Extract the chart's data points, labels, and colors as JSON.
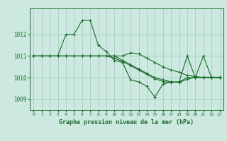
{
  "title": "Graphe pression niveau de la mer (hPa)",
  "bg_color": "#cce8e0",
  "grid_color": "#99ccbb",
  "line_color": "#1a6b2a",
  "xlim": [
    -0.5,
    23.5
  ],
  "ylim": [
    1008.5,
    1013.2
  ],
  "yticks": [
    1009,
    1010,
    1011,
    1012
  ],
  "xticks": [
    0,
    1,
    2,
    3,
    4,
    5,
    6,
    7,
    8,
    9,
    10,
    11,
    12,
    13,
    14,
    15,
    16,
    17,
    18,
    19,
    20,
    21,
    22,
    23
  ],
  "series1": {
    "x": [
      0,
      1,
      2,
      3,
      4,
      5,
      6,
      7,
      8,
      9,
      10,
      11,
      12,
      13,
      14,
      15,
      16,
      17,
      18,
      19,
      20,
      21,
      22,
      23
    ],
    "y": [
      1011,
      1011,
      1011,
      1011,
      1012,
      1012,
      1012.65,
      1012.65,
      1011.5,
      1011.2,
      1010.8,
      1010.7,
      1009.9,
      1009.8,
      1009.6,
      1009.1,
      1009.7,
      1009.8,
      1009.8,
      1011.0,
      1010.0,
      1011.0,
      1010.0,
      1010.0
    ]
  },
  "series2": {
    "x": [
      0,
      1,
      2,
      3,
      4,
      5,
      6,
      7,
      8,
      9,
      10,
      11,
      12,
      13,
      14,
      15,
      16,
      17,
      18,
      19,
      20,
      21,
      22,
      23
    ],
    "y": [
      1011,
      1011,
      1011,
      1011,
      1011,
      1011,
      1011,
      1011,
      1011,
      1011,
      1011,
      1011,
      1011.15,
      1011.1,
      1010.9,
      1010.7,
      1010.5,
      1010.35,
      1010.25,
      1010.1,
      1010.05,
      1010.0,
      1010.0,
      1010.0
    ]
  },
  "series3": {
    "x": [
      0,
      1,
      2,
      3,
      4,
      5,
      6,
      7,
      8,
      9,
      10,
      11,
      12,
      13,
      14,
      15,
      16,
      17,
      18,
      19,
      20,
      21,
      22,
      23
    ],
    "y": [
      1011,
      1011,
      1011,
      1011,
      1011,
      1011,
      1011,
      1011,
      1011,
      1011,
      1011,
      1010.8,
      1010.6,
      1010.4,
      1010.2,
      1010.0,
      1009.9,
      1009.8,
      1009.8,
      1010.0,
      1010.0,
      1010.0,
      1010.0,
      1010.0
    ]
  },
  "series4": {
    "x": [
      0,
      1,
      2,
      3,
      4,
      5,
      6,
      7,
      8,
      9,
      10,
      11,
      12,
      13,
      14,
      15,
      16,
      17,
      18,
      19,
      20,
      21,
      22,
      23
    ],
    "y": [
      1011,
      1011,
      1011,
      1011,
      1011,
      1011,
      1011,
      1011,
      1011,
      1011,
      1010.9,
      1010.75,
      1010.55,
      1010.35,
      1010.15,
      1009.95,
      1009.82,
      1009.78,
      1009.78,
      1009.92,
      1010.02,
      1010.02,
      1010.02,
      1010.02
    ]
  }
}
